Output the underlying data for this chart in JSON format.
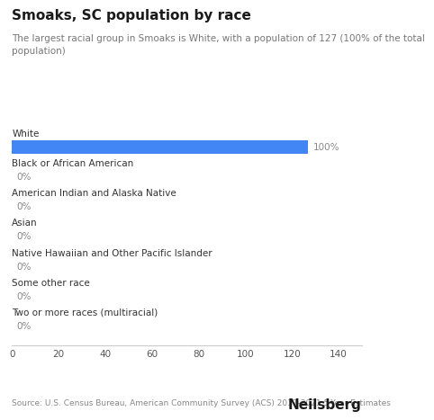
{
  "title": "Smoaks, SC population by race",
  "subtitle": "The largest racial group in Smoaks is White, with a population of 127 (100% of the total\npopulation)",
  "categories": [
    "White",
    "Black or African American",
    "American Indian and Alaska Native",
    "Asian",
    "Native Hawaiian and Other Pacific Islander",
    "Some other race",
    "Two or more races (multiracial)"
  ],
  "values": [
    127,
    0,
    0,
    0,
    0,
    0,
    0
  ],
  "percentages": [
    "100%",
    "0%",
    "0%",
    "0%",
    "0%",
    "0%",
    "0%"
  ],
  "bar_color": "#4285f4",
  "bar_height": 0.45,
  "xlim": [
    0,
    150
  ],
  "xticks": [
    0,
    20,
    40,
    60,
    80,
    100,
    120,
    140
  ],
  "background_color": "#ffffff",
  "title_fontsize": 11,
  "subtitle_fontsize": 7.5,
  "label_fontsize": 7.5,
  "pct_fontsize": 7.5,
  "tick_fontsize": 7.5,
  "source_text": "Source: U.S. Census Bureau, American Community Survey (ACS) 2017-2021 5-Year Estimates",
  "brand_text": "Neilsberg",
  "title_color": "#1a1a1a",
  "subtitle_color": "#777777",
  "label_color": "#333333",
  "pct_color": "#888888",
  "source_color": "#888888",
  "brand_color": "#1a1a1a",
  "axis_color": "#cccccc"
}
